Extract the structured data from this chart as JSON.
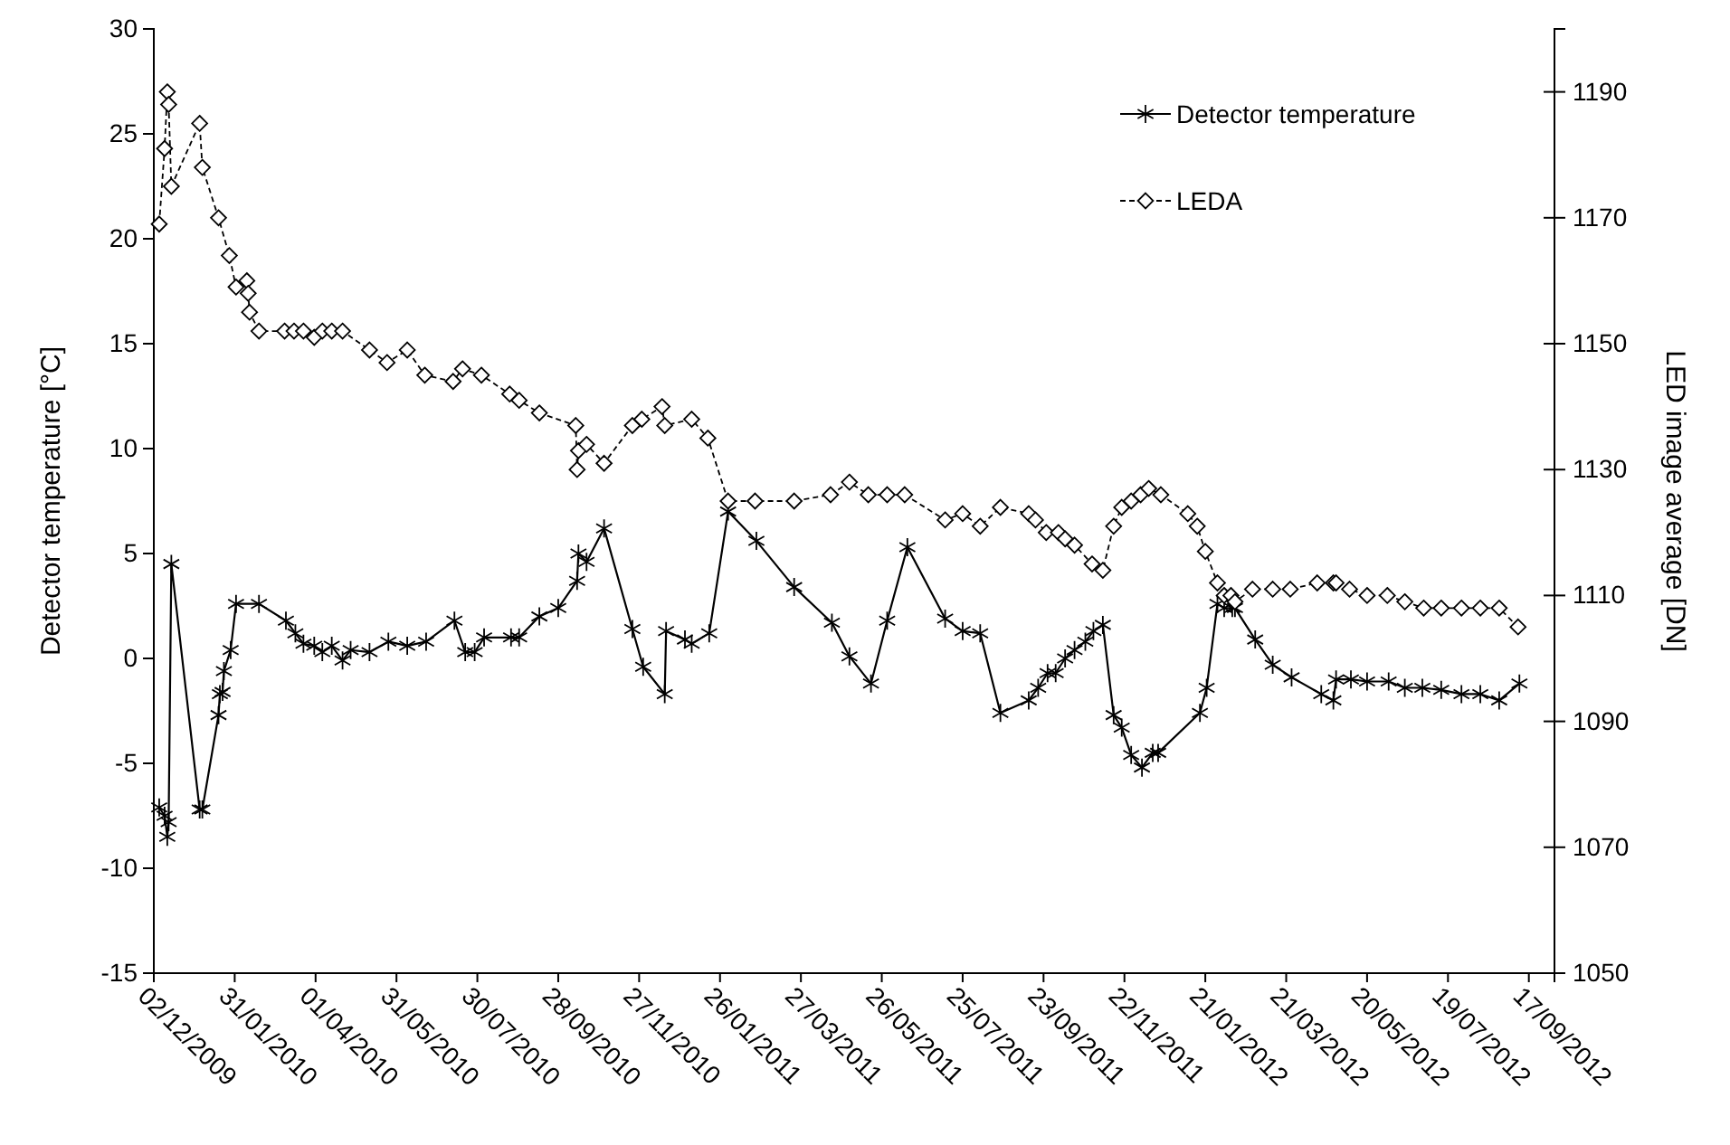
{
  "chart_data": {
    "type": "line",
    "ylabel": "Detector temperature [°C]",
    "y2label": "LED image average [DN]",
    "xlim": [
      "2009-12-02",
      "2012-10-06"
    ],
    "xticks": [
      {
        "value": "2009-12-02",
        "label": "02/12/2009"
      },
      {
        "value": "2010-01-31",
        "label": "31/01/2010"
      },
      {
        "value": "2010-04-01",
        "label": "01/04/2010"
      },
      {
        "value": "2010-05-31",
        "label": "31/05/2010"
      },
      {
        "value": "2010-07-30",
        "label": "30/07/2010"
      },
      {
        "value": "2010-09-28",
        "label": "28/09/2010"
      },
      {
        "value": "2010-11-27",
        "label": "27/11/2010"
      },
      {
        "value": "2011-01-26",
        "label": "26/01/2011"
      },
      {
        "value": "2011-03-27",
        "label": "27/03/2011"
      },
      {
        "value": "2011-05-26",
        "label": "26/05/2011"
      },
      {
        "value": "2011-07-25",
        "label": "25/07/2011"
      },
      {
        "value": "2011-09-23",
        "label": "23/09/2011"
      },
      {
        "value": "2011-11-22",
        "label": "22/11/2011"
      },
      {
        "value": "2012-01-21",
        "label": "21/01/2012"
      },
      {
        "value": "2012-03-21",
        "label": "21/03/2012"
      },
      {
        "value": "2012-05-20",
        "label": "20/05/2012"
      },
      {
        "value": "2012-07-19",
        "label": "19/07/2012"
      },
      {
        "value": "2012-09-17",
        "label": "17/09/2012"
      }
    ],
    "ylim": [
      -15,
      30
    ],
    "yticks": [
      -15,
      -10,
      -5,
      0,
      5,
      10,
      15,
      20,
      25,
      30
    ],
    "y2lim": [
      1050,
      1200
    ],
    "y2ticks": [
      1050,
      1070,
      1090,
      1110,
      1130,
      1150,
      1170,
      1190
    ],
    "grid": false,
    "legend": "top right",
    "series": [
      {
        "name": "Detector temperature",
        "color": "#000000",
        "marker": "cross",
        "line_style": "solid",
        "x": [
          "2009-12-06",
          "2009-12-10",
          "2009-12-12",
          "2009-12-13",
          "2009-12-15",
          "2010-01-05",
          "2010-01-07",
          "2010-01-19",
          "2010-01-20",
          "2010-01-22",
          "2010-01-23",
          "2010-01-28",
          "2010-02-01",
          "2010-02-18",
          "2010-03-10",
          "2010-03-17",
          "2010-03-23",
          "2010-03-31",
          "2010-04-06",
          "2010-04-13",
          "2010-04-21",
          "2010-04-27",
          "2010-05-11",
          "2010-05-25",
          "2010-06-08",
          "2010-06-22",
          "2010-07-13",
          "2010-07-21",
          "2010-07-28",
          "2010-08-04",
          "2010-08-24",
          "2010-08-30",
          "2010-09-14",
          "2010-09-28",
          "2010-10-12",
          "2010-10-13",
          "2010-10-19",
          "2010-11-01",
          "2010-11-22",
          "2010-11-30",
          "2010-12-16",
          "2010-12-17",
          "2010-12-31",
          "2011-01-05",
          "2011-01-18",
          "2011-02-01",
          "2011-02-22",
          "2011-03-22",
          "2011-04-19",
          "2011-05-02",
          "2011-05-18",
          "2011-05-30",
          "2011-06-14",
          "2011-07-12",
          "2011-07-25",
          "2011-08-07",
          "2011-08-22",
          "2011-09-12",
          "2011-09-19",
          "2011-09-26",
          "2011-10-02",
          "2011-10-09",
          "2011-10-16",
          "2011-10-24",
          "2011-10-30",
          "2011-11-06",
          "2011-11-14",
          "2011-11-20",
          "2011-11-27",
          "2011-12-05",
          "2011-12-13",
          "2011-12-17",
          "2012-01-17",
          "2012-01-22",
          "2012-01-30",
          "2012-02-04",
          "2012-02-10",
          "2012-02-12",
          "2012-02-27",
          "2012-03-11",
          "2012-03-25",
          "2012-04-16",
          "2012-04-25",
          "2012-04-27",
          "2012-05-08",
          "2012-05-20",
          "2012-06-05",
          "2012-06-17",
          "2012-06-30",
          "2012-07-14",
          "2012-07-29",
          "2012-08-12",
          "2012-08-26",
          "2012-09-10"
        ],
        "values": [
          -7.1,
          -7.5,
          -8.5,
          -7.8,
          4.5,
          -7.2,
          -7.2,
          -2.7,
          -1.7,
          -1.6,
          -0.6,
          0.4,
          2.6,
          2.6,
          1.8,
          1.2,
          0.7,
          0.6,
          0.3,
          0.6,
          -0.1,
          0.4,
          0.3,
          0.8,
          0.6,
          0.8,
          1.8,
          0.3,
          0.3,
          1.0,
          1.0,
          1.0,
          2.0,
          2.4,
          3.7,
          5.0,
          4.6,
          6.2,
          1.4,
          -0.4,
          -1.7,
          1.3,
          0.9,
          0.7,
          1.2,
          7.0,
          5.6,
          3.4,
          1.7,
          0.1,
          -1.2,
          1.8,
          5.3,
          1.9,
          1.3,
          1.2,
          -2.6,
          -2.0,
          -1.4,
          -0.7,
          -0.7,
          0.0,
          0.4,
          0.8,
          1.3,
          1.6,
          -2.7,
          -3.3,
          -4.6,
          -5.2,
          -4.5,
          -4.5,
          -2.6,
          -1.4,
          2.6,
          2.4,
          2.4,
          2.4,
          0.9,
          -0.3,
          -0.9,
          -1.7,
          -2.0,
          -1.0,
          -1.0,
          -1.1,
          -1.1,
          -1.4,
          -1.4,
          -1.5,
          -1.7,
          -1.7,
          -2.0,
          -1.2
        ]
      },
      {
        "name": "LEDA",
        "color": "#000000",
        "marker": "diamond",
        "line_style": "dashed",
        "axis": "y2",
        "x": [
          "2009-12-06",
          "2009-12-10",
          "2009-12-12",
          "2009-12-13",
          "2009-12-15",
          "2010-01-05",
          "2010-01-07",
          "2010-01-19",
          "2010-01-27",
          "2010-02-01",
          "2010-02-09",
          "2010-02-10",
          "2010-02-11",
          "2010-02-18",
          "2010-03-09",
          "2010-03-16",
          "2010-03-23",
          "2010-03-31",
          "2010-04-06",
          "2010-04-13",
          "2010-04-21",
          "2010-05-11",
          "2010-05-24",
          "2010-06-08",
          "2010-06-21",
          "2010-07-12",
          "2010-07-19",
          "2010-08-02",
          "2010-08-23",
          "2010-08-30",
          "2010-09-14",
          "2010-10-11",
          "2010-10-12",
          "2010-10-13",
          "2010-10-19",
          "2010-11-01",
          "2010-11-22",
          "2010-11-29",
          "2010-12-14",
          "2010-12-16",
          "2011-01-05",
          "2011-01-17",
          "2011-02-01",
          "2011-02-21",
          "2011-03-22",
          "2011-04-18",
          "2011-05-02",
          "2011-05-16",
          "2011-05-30",
          "2011-06-12",
          "2011-07-12",
          "2011-07-25",
          "2011-08-07",
          "2011-08-22",
          "2011-09-12",
          "2011-09-17",
          "2011-09-25",
          "2011-10-04",
          "2011-10-09",
          "2011-10-16",
          "2011-10-29",
          "2011-11-06",
          "2011-11-14",
          "2011-11-20",
          "2011-11-27",
          "2011-12-04",
          "2011-12-10",
          "2011-12-19",
          "2012-01-08",
          "2012-01-15",
          "2012-01-21",
          "2012-01-30",
          "2012-02-04",
          "2012-02-09",
          "2012-02-12",
          "2012-02-25",
          "2012-03-11",
          "2012-03-24",
          "2012-04-13",
          "2012-04-25",
          "2012-04-27",
          "2012-05-07",
          "2012-05-20",
          "2012-06-04",
          "2012-06-17",
          "2012-07-01",
          "2012-07-14",
          "2012-07-29",
          "2012-08-12",
          "2012-08-26",
          "2012-09-09"
        ],
        "values": [
          1169,
          1181,
          1190,
          1188,
          1175,
          1185,
          1178,
          1170,
          1164,
          1159,
          1160,
          1158,
          1155,
          1152,
          1152,
          1152,
          1152,
          1151,
          1152,
          1152,
          1152,
          1149,
          1147,
          1149,
          1145,
          1144,
          1146,
          1145,
          1142,
          1141,
          1139,
          1137,
          1130,
          1133,
          1134,
          1131,
          1137,
          1138,
          1140,
          1137,
          1138,
          1135,
          1125,
          1125,
          1125,
          1126,
          1128,
          1126,
          1126,
          1126,
          1122,
          1123,
          1121,
          1124,
          1123,
          1122,
          1120,
          1120,
          1119,
          1118,
          1115,
          1114,
          1121,
          1124,
          1125,
          1126,
          1127,
          1126,
          1123,
          1121,
          1117,
          1112,
          1110,
          1110,
          1109,
          1111,
          1111,
          1111,
          1112,
          1112,
          1112,
          1111,
          1110,
          1110,
          1109,
          1108,
          1108,
          1108,
          1108,
          1108,
          1105
        ]
      }
    ]
  }
}
